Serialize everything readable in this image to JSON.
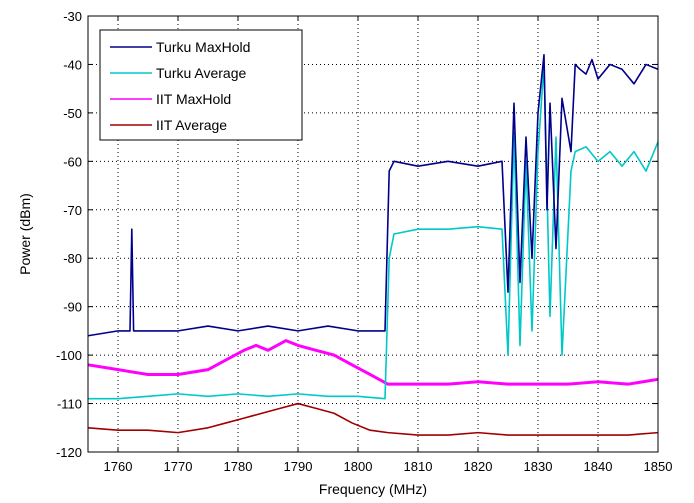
{
  "chart_data": {
    "type": "line",
    "title": "",
    "xlabel": "Frequency (MHz)",
    "ylabel": "Power (dBm)",
    "xlim": [
      1755,
      1850
    ],
    "ylim": [
      -120,
      -30
    ],
    "x_ticks": [
      1760,
      1770,
      1780,
      1790,
      1800,
      1810,
      1820,
      1830,
      1840,
      1850
    ],
    "y_ticks": [
      -120,
      -110,
      -100,
      -90,
      -80,
      -70,
      -60,
      -50,
      -40,
      -30
    ],
    "grid": true,
    "legend_position": "top-left",
    "series": [
      {
        "name": "Turku MaxHold",
        "color": "#00008b",
        "x": [
          1755,
          1760,
          1762,
          1762.3,
          1762.6,
          1765,
          1770,
          1775,
          1780,
          1785,
          1790,
          1795,
          1800,
          1804.5,
          1805.2,
          1806,
          1810,
          1815,
          1820,
          1824,
          1825,
          1826,
          1827,
          1828,
          1829,
          1830,
          1831,
          1831.5,
          1832,
          1833,
          1834,
          1835.5,
          1836.2,
          1837,
          1838,
          1839,
          1840,
          1842,
          1844,
          1846,
          1848,
          1850
        ],
        "y": [
          -96,
          -95,
          -95,
          -74,
          -95,
          -95,
          -95,
          -94,
          -95,
          -94,
          -95,
          -94,
          -95,
          -95,
          -62,
          -60,
          -61,
          -60,
          -61,
          -60,
          -87,
          -48,
          -85,
          -55,
          -80,
          -50,
          -38,
          -70,
          -48,
          -78,
          -47,
          -58,
          -40,
          -41,
          -42,
          -39,
          -43,
          -40,
          -41,
          -44,
          -40,
          -41
        ]
      },
      {
        "name": "Turku Average",
        "color": "#00c8c8",
        "x": [
          1755,
          1760,
          1765,
          1770,
          1775,
          1780,
          1785,
          1790,
          1795,
          1800,
          1804.5,
          1805.2,
          1806,
          1810,
          1815,
          1820,
          1824,
          1825,
          1826,
          1827,
          1828,
          1829,
          1830,
          1831,
          1832,
          1833,
          1834,
          1835.5,
          1836.2,
          1838,
          1840,
          1842,
          1844,
          1846,
          1848,
          1850
        ],
        "y": [
          -109,
          -109,
          -108.5,
          -108,
          -108.5,
          -108,
          -108.5,
          -108,
          -108.5,
          -108.5,
          -109,
          -80,
          -75,
          -74,
          -74,
          -73.5,
          -74,
          -100,
          -54,
          -98,
          -60,
          -95,
          -58,
          -40,
          -92,
          -55,
          -100,
          -62,
          -58,
          -57,
          -60,
          -58,
          -61,
          -58,
          -62,
          -56
        ]
      },
      {
        "name": "IIT MaxHold",
        "color": "#ff00ff",
        "x": [
          1755,
          1760,
          1765,
          1770,
          1775,
          1778,
          1781,
          1783,
          1785,
          1788,
          1790,
          1793,
          1796,
          1799,
          1802,
          1805,
          1810,
          1815,
          1820,
          1825,
          1830,
          1835,
          1840,
          1845,
          1850
        ],
        "y": [
          -102,
          -103,
          -104,
          -104,
          -103,
          -101,
          -99,
          -98,
          -99,
          -97,
          -98,
          -99,
          -100,
          -102,
          -104,
          -106,
          -106,
          -106,
          -105.5,
          -106,
          -106,
          -106,
          -105.5,
          -106,
          -105
        ]
      },
      {
        "name": "IIT Average",
        "color": "#a00000",
        "x": [
          1755,
          1760,
          1765,
          1770,
          1775,
          1778,
          1781,
          1784,
          1787,
          1790,
          1793,
          1796,
          1799,
          1802,
          1805,
          1810,
          1815,
          1820,
          1825,
          1830,
          1835,
          1840,
          1845,
          1850
        ],
        "y": [
          -115,
          -115.5,
          -115.5,
          -116,
          -115,
          -114,
          -113,
          -112,
          -111,
          -110,
          -111,
          -112,
          -114,
          -115.5,
          -116,
          -116.5,
          -116.5,
          -116,
          -116.5,
          -116.5,
          -116.5,
          -116.5,
          -116.5,
          -116
        ]
      }
    ]
  }
}
